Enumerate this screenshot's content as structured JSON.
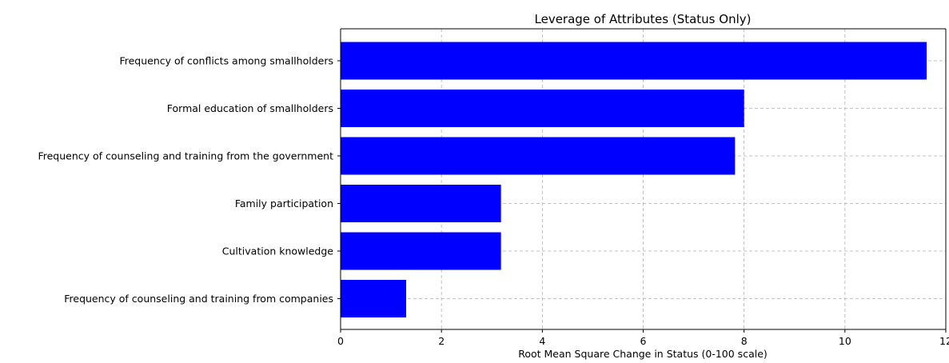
{
  "chart_data": {
    "type": "bar",
    "orientation": "horizontal",
    "title": "Leverage of Attributes (Status Only)",
    "xlabel": "Root Mean Square Change in Status (0-100 scale)",
    "ylabel": "",
    "xlim": [
      0,
      12
    ],
    "xticks": [
      0,
      2,
      4,
      6,
      8,
      10,
      12
    ],
    "grid": true,
    "bar_color": "#0000ff",
    "categories": [
      "Frequency of conflicts among smallholders",
      "Formal education of smallholders",
      "Frequency of counseling and training from the government",
      "Family participation",
      "Cultivation knowledge",
      "Frequency of counseling and training from companies"
    ],
    "values": [
      11.62,
      8.0,
      7.82,
      3.18,
      3.18,
      1.3
    ]
  }
}
